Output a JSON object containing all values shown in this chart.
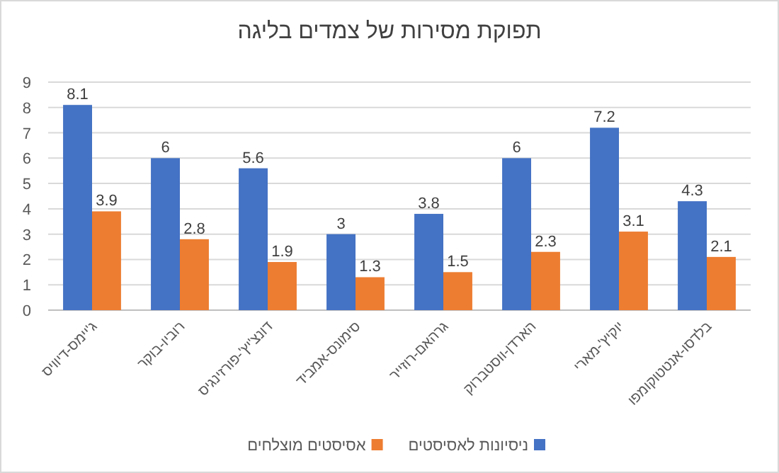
{
  "chart_data": {
    "type": "bar",
    "title": "תפוקת מסירות של צמדים בליגה",
    "categories": [
      "ג'יימס-דיוויס",
      "רוביו-בוקר",
      "דונצ'יץ'-פורזינגיס",
      "סימונס-אמביד",
      "גרהאם-רוזייר",
      "הארדן-ווסטברוק",
      "יוקיץ'-מארי",
      "בלדסו-אנטטוקומפו"
    ],
    "series": [
      {
        "name": "ניסיונות לאסיסטים",
        "color": "#4472c4",
        "values": [
          8.1,
          6,
          5.6,
          3,
          3.8,
          6,
          7.2,
          4.3
        ]
      },
      {
        "name": "אסיסטים מוצלחים",
        "color": "#ed7d31",
        "values": [
          3.9,
          2.8,
          1.9,
          1.3,
          1.5,
          2.3,
          3.1,
          2.1
        ]
      }
    ],
    "ylim": [
      0,
      9
    ],
    "yticks": [
      0,
      1,
      2,
      3,
      4,
      5,
      6,
      7,
      8,
      9
    ],
    "grid": "y",
    "legend": "bottom",
    "data_labels": true
  }
}
